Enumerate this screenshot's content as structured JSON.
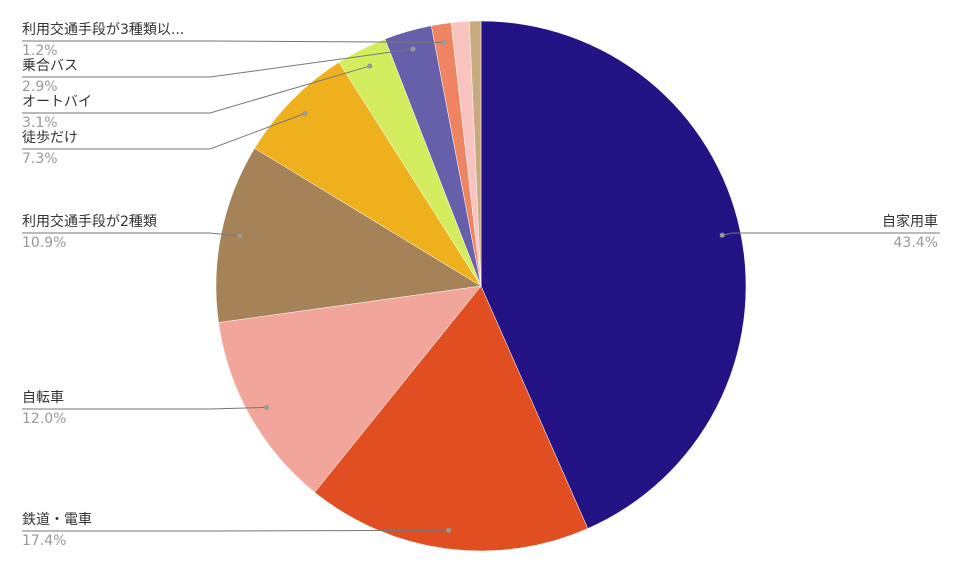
{
  "chart_data": {
    "type": "pie",
    "categories": [
      "自家用車",
      "鉄道・電車",
      "自転車",
      "利用交通手段が2種類",
      "徒歩だけ",
      "オートバイ",
      "乗合バス",
      "利用交通手段が3種類以...",
      null,
      null
    ],
    "values": [
      43.4,
      17.4,
      12.0,
      10.9,
      7.3,
      3.1,
      2.9,
      1.2,
      1.1,
      0.7
    ],
    "value_labels": [
      "43.4%",
      "17.4%",
      "12.0%",
      "10.9%",
      "7.3%",
      "3.1%",
      "2.9%",
      "1.2%",
      null,
      null
    ],
    "colors": [
      "#231385",
      "#e04e22",
      "#f2a59a",
      "#a58257",
      "#efb01e",
      "#d4ed5e",
      "#6660ab",
      "#ee8462",
      "#f9c3c0",
      "#c8aa7f"
    ]
  }
}
